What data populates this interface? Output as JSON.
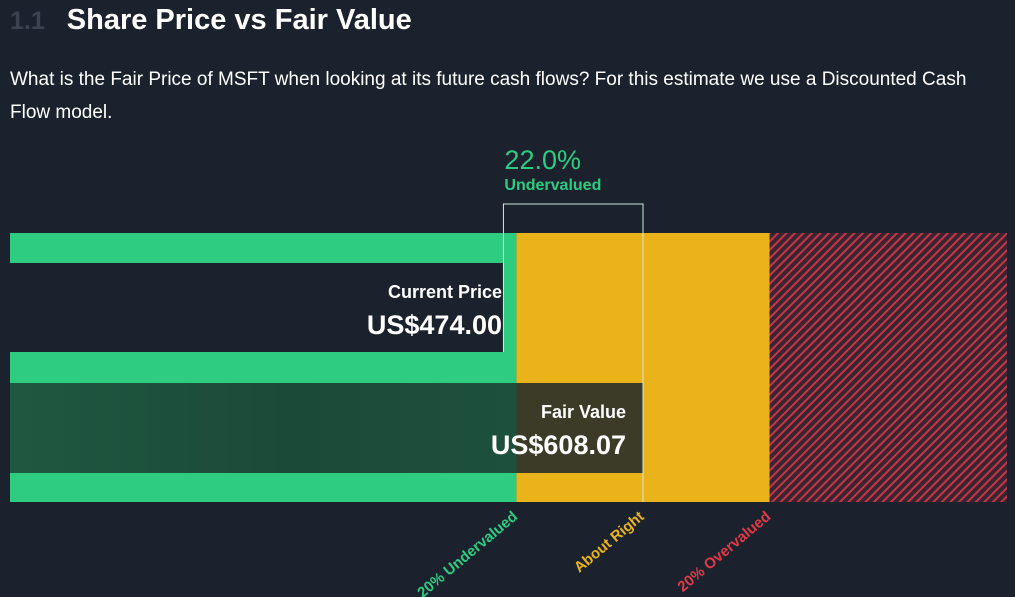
{
  "section": {
    "number": "1.1",
    "title": "Share Price vs Fair Value"
  },
  "description": "What is the Fair Price of MSFT when looking at its future cash flows? For this estimate we use a Discounted Cash Flow model.",
  "colors": {
    "background": "#1b222d",
    "undervalued": "#2ecc80",
    "about_right": "#eab31a",
    "overvalued": "#e03a48",
    "fair_value_bar": "#1f5540"
  },
  "chart_data": {
    "type": "bar",
    "ticker": "MSFT",
    "current_price": {
      "label": "Current Price",
      "value": 474.0,
      "display": "US$474.00"
    },
    "fair_value": {
      "label": "Fair Value",
      "value": 608.07,
      "display": "US$608.07"
    },
    "discount": {
      "percent": 22.0,
      "display": "22.0%",
      "label": "Undervalued"
    },
    "zones": [
      {
        "label": "20% Undervalued",
        "color": "#2ecc80"
      },
      {
        "label": "About Right",
        "color": "#eab31a"
      },
      {
        "label": "20% Overvalued",
        "color": "#e03a48"
      }
    ],
    "zone_fraction_of_fair_value": {
      "undervalued_max": 0.8,
      "about_right_max": 1.2
    }
  }
}
